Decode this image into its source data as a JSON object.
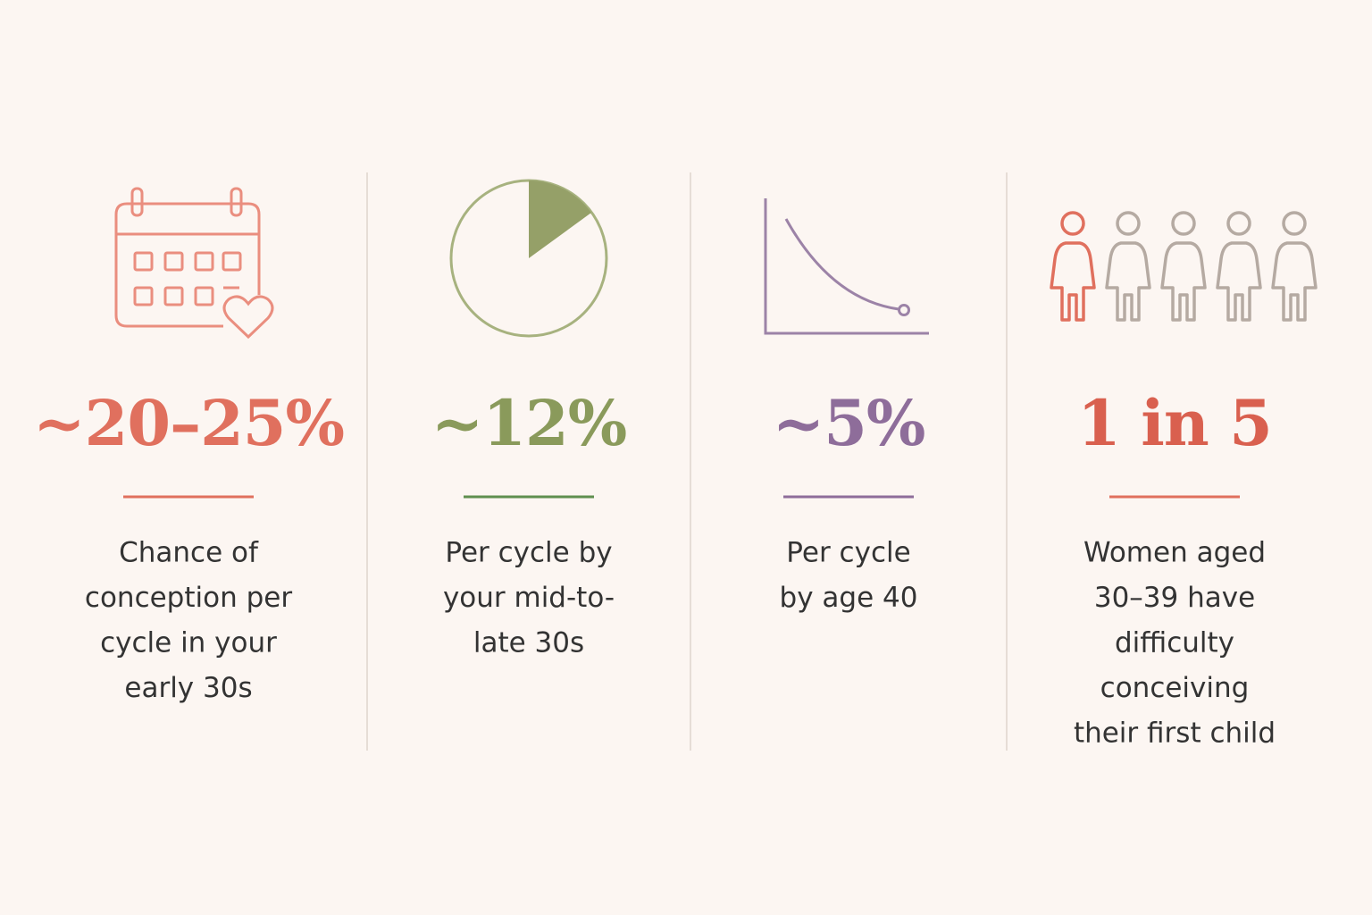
{
  "stats": [
    {
      "value": "~20–25%",
      "description": [
        "Chance of",
        "conception per",
        "cycle in your",
        "early 30s"
      ]
    },
    {
      "value": "~12%",
      "description": [
        "Per cycle by",
        "your mid-to-",
        "late 30s"
      ]
    },
    {
      "value": "~5%",
      "description": [
        "Per cycle",
        "by age 40"
      ]
    },
    {
      "value": "1 in 5",
      "description": [
        "Women aged",
        "30–39 have",
        "difficulty",
        "conceiving",
        "their first child"
      ]
    }
  ]
}
